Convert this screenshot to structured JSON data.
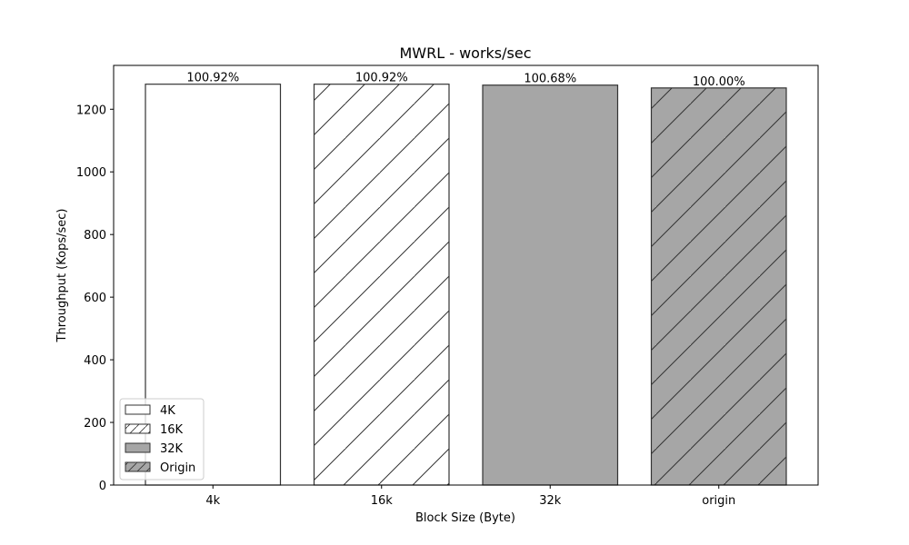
{
  "chart_data": {
    "type": "bar",
    "title": "MWRL - works/sec",
    "xlabel": "Block Size (Byte)",
    "ylabel": "Throughput (Kops/sec)",
    "categories": [
      "4k",
      "16k",
      "32k",
      "origin"
    ],
    "values": [
      1280,
      1280,
      1277,
      1268
    ],
    "value_labels": [
      "100.92%",
      "100.92%",
      "100.68%",
      "100.00%"
    ],
    "ylim": [
      0,
      1340
    ],
    "yticks": [
      0,
      200,
      400,
      600,
      800,
      1000,
      1200
    ],
    "grid": false,
    "legend": {
      "placement": "lower-left",
      "entries": [
        "4K",
        "16K",
        "32K",
        "Origin"
      ]
    },
    "styles": [
      {
        "fill": "#ffffff",
        "hatch": false
      },
      {
        "fill": "#ffffff",
        "hatch": true
      },
      {
        "fill": "#a6a6a6",
        "hatch": false
      },
      {
        "fill": "#a6a6a6",
        "hatch": true
      }
    ],
    "edge_color": "#333333"
  }
}
